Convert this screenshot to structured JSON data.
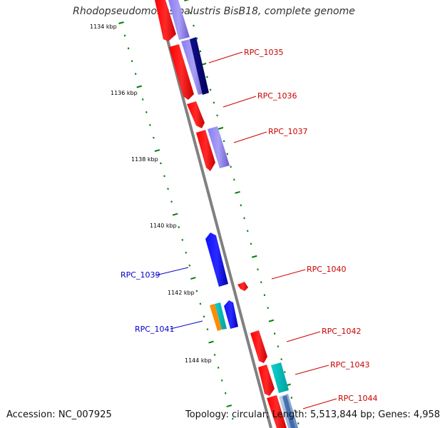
{
  "title": "Rhodopseudomonas palustris BisB18, complete genome",
  "footer": {
    "accession": "Accession: NC_007925",
    "topology": "Topology: circular; Length: 5,513,844 bp; Genes: 4,958"
  },
  "ruler_ticks": [
    "1134 kbp",
    "1136 kbp",
    "1138 kbp",
    "1140 kbp",
    "1142 kbp",
    "1144 kbp"
  ],
  "gene_labels": [
    {
      "id": "rpc-1035",
      "text": "RPC_1035",
      "color": "#cc0000"
    },
    {
      "id": "rpc-1036",
      "text": "RPC_1036",
      "color": "#cc0000"
    },
    {
      "id": "rpc-1037",
      "text": "RPC_1037",
      "color": "#cc0000"
    },
    {
      "id": "rpc-1039",
      "text": "RPC_1039",
      "color": "#0000cc"
    },
    {
      "id": "rpc-1040",
      "text": "RPC_1040",
      "color": "#cc0000"
    },
    {
      "id": "rpc-1041",
      "text": "RPC_1041",
      "color": "#0000cc"
    },
    {
      "id": "rpc-1042",
      "text": "RPC_1042",
      "color": "#cc0000"
    },
    {
      "id": "rpc-1043",
      "text": "RPC_1043",
      "color": "#cc0000"
    },
    {
      "id": "rpc-1044",
      "text": "RPC_1044",
      "color": "#cc0000"
    }
  ],
  "colors": {
    "forward_gene": "#ff0000",
    "reverse_gene": "#0000ff",
    "rna_orange": "#ff8c00",
    "rna_cyan": "#00cccc",
    "lavender": "#7b68ee",
    "navy": "#000080",
    "ruler": "#008000",
    "backbone": "#808080"
  }
}
